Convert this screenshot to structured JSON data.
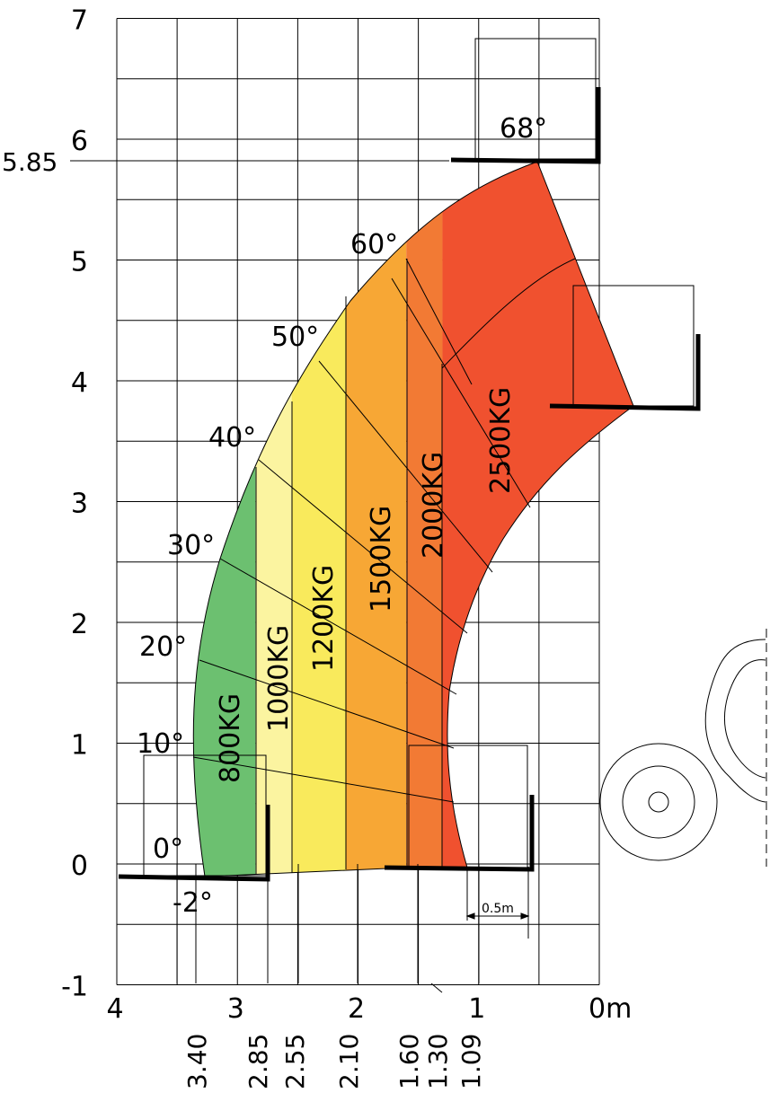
{
  "chart_data": {
    "type": "area",
    "title": "",
    "xlabel": "",
    "ylabel": "",
    "x_unit_label": "0m",
    "xlim": [
      4,
      0
    ],
    "ylim": [
      -1,
      7
    ],
    "x_major_ticks": [
      4,
      3,
      2,
      1
    ],
    "y_major_ticks": [
      -1,
      0,
      1,
      2,
      3,
      4,
      5,
      6,
      7
    ],
    "grid": true,
    "max_height_label": "5.85",
    "bottom_reach_labels": [
      "3.40",
      "2.85",
      "2.55",
      "2.10",
      "1.60",
      "1.30",
      "1.09"
    ],
    "scale_bar_label": "0.5m",
    "boom_angles": [
      {
        "label": "-2°",
        "deg": -2
      },
      {
        "label": "0°",
        "deg": 0
      },
      {
        "label": "10°",
        "deg": 10
      },
      {
        "label": "20°",
        "deg": 20
      },
      {
        "label": "30°",
        "deg": 30
      },
      {
        "label": "40°",
        "deg": 40
      },
      {
        "label": "50°",
        "deg": 50
      },
      {
        "label": "60°",
        "deg": 60
      },
      {
        "label": "68°",
        "deg": 68
      }
    ],
    "load_zones": [
      {
        "label": "800KG",
        "max_reach_m": 3.4,
        "min_reach_m": 2.85,
        "color": "#6cc070"
      },
      {
        "label": "1000KG",
        "max_reach_m": 2.85,
        "min_reach_m": 2.55,
        "color": "#fbf4a0"
      },
      {
        "label": "1200KG",
        "max_reach_m": 2.55,
        "min_reach_m": 2.1,
        "color": "#f9ea5c"
      },
      {
        "label": "1500KG",
        "max_reach_m": 2.1,
        "min_reach_m": 1.6,
        "color": "#f7a735"
      },
      {
        "label": "2000KG",
        "max_reach_m": 1.6,
        "min_reach_m": 1.3,
        "color": "#f27a34"
      },
      {
        "label": "2500KG",
        "max_reach_m": 1.3,
        "min_reach_m": 1.09,
        "color": "#f0512f"
      }
    ]
  }
}
